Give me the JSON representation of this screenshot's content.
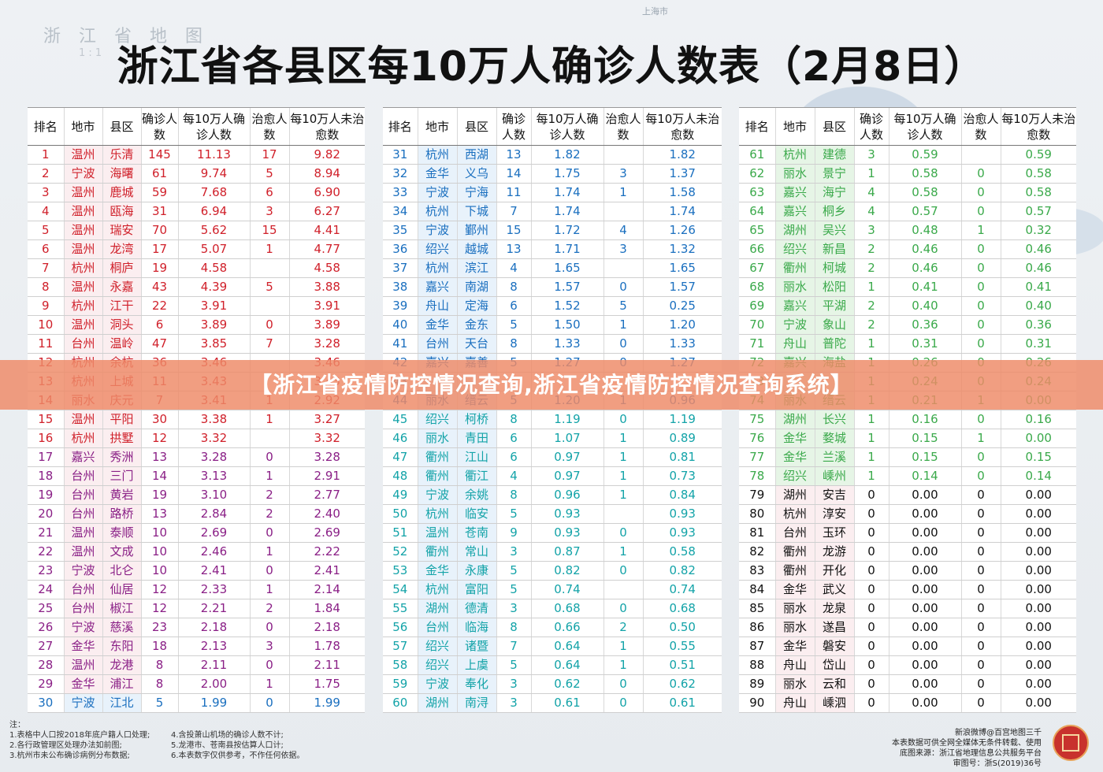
{
  "map": {
    "title": "浙 江 省 地 图",
    "scale": "1 : 1",
    "shanghai": "上海市"
  },
  "title": "浙江省各县区每10万人确诊人数表（2月8日）",
  "headers": [
    "排名",
    "地市",
    "县区",
    "确诊人数",
    "每10万人确诊人数",
    "治愈人数",
    "每10万人未治愈数"
  ],
  "banner": "【浙江省疫情防控情况查询,浙江省疫情防控情况查询系统】",
  "table1": [
    {
      "rank": "1",
      "city": "温州",
      "county": "乐清",
      "cases": "145",
      "per": "11.13",
      "cured": "17",
      "uncured": "9.82",
      "color": "red"
    },
    {
      "rank": "2",
      "city": "宁波",
      "county": "海曙",
      "cases": "61",
      "per": "9.74",
      "cured": "5",
      "uncured": "8.94",
      "color": "red"
    },
    {
      "rank": "3",
      "city": "温州",
      "county": "鹿城",
      "cases": "59",
      "per": "7.68",
      "cured": "6",
      "uncured": "6.90",
      "color": "red"
    },
    {
      "rank": "4",
      "city": "温州",
      "county": "瓯海",
      "cases": "31",
      "per": "6.94",
      "cured": "3",
      "uncured": "6.27",
      "color": "red"
    },
    {
      "rank": "5",
      "city": "温州",
      "county": "瑞安",
      "cases": "70",
      "per": "5.62",
      "cured": "15",
      "uncured": "4.41",
      "color": "red"
    },
    {
      "rank": "6",
      "city": "温州",
      "county": "龙湾",
      "cases": "17",
      "per": "5.07",
      "cured": "1",
      "uncured": "4.77",
      "color": "red"
    },
    {
      "rank": "7",
      "city": "杭州",
      "county": "桐庐",
      "cases": "19",
      "per": "4.58",
      "cured": "",
      "uncured": "4.58",
      "color": "red"
    },
    {
      "rank": "8",
      "city": "温州",
      "county": "永嘉",
      "cases": "43",
      "per": "4.39",
      "cured": "5",
      "uncured": "3.88",
      "color": "red"
    },
    {
      "rank": "9",
      "city": "杭州",
      "county": "江干",
      "cases": "22",
      "per": "3.91",
      "cured": "",
      "uncured": "3.91",
      "color": "red"
    },
    {
      "rank": "10",
      "city": "温州",
      "county": "洞头",
      "cases": "6",
      "per": "3.89",
      "cured": "0",
      "uncured": "3.89",
      "color": "red"
    },
    {
      "rank": "11",
      "city": "台州",
      "county": "温岭",
      "cases": "47",
      "per": "3.85",
      "cured": "7",
      "uncured": "3.28",
      "color": "red"
    },
    {
      "rank": "12",
      "city": "杭州",
      "county": "余杭",
      "cases": "36",
      "per": "3.46",
      "cured": "",
      "uncured": "3.46",
      "color": "red"
    },
    {
      "rank": "13",
      "city": "杭州",
      "county": "上城",
      "cases": "11",
      "per": "3.43",
      "cured": "",
      "uncured": "3.43",
      "color": "red"
    },
    {
      "rank": "14",
      "city": "丽水",
      "county": "庆元",
      "cases": "7",
      "per": "3.41",
      "cured": "1",
      "uncured": "2.92",
      "color": "red"
    },
    {
      "rank": "15",
      "city": "温州",
      "county": "平阳",
      "cases": "30",
      "per": "3.38",
      "cured": "1",
      "uncured": "3.27",
      "color": "red"
    },
    {
      "rank": "16",
      "city": "杭州",
      "county": "拱墅",
      "cases": "12",
      "per": "3.32",
      "cured": "",
      "uncured": "3.32",
      "color": "red"
    },
    {
      "rank": "17",
      "city": "嘉兴",
      "county": "秀洲",
      "cases": "13",
      "per": "3.28",
      "cured": "0",
      "uncured": "3.28",
      "color": "purple"
    },
    {
      "rank": "18",
      "city": "台州",
      "county": "三门",
      "cases": "14",
      "per": "3.13",
      "cured": "1",
      "uncured": "2.91",
      "color": "purple"
    },
    {
      "rank": "19",
      "city": "台州",
      "county": "黄岩",
      "cases": "19",
      "per": "3.10",
      "cured": "2",
      "uncured": "2.77",
      "color": "purple"
    },
    {
      "rank": "20",
      "city": "台州",
      "county": "路桥",
      "cases": "13",
      "per": "2.84",
      "cured": "2",
      "uncured": "2.40",
      "color": "purple"
    },
    {
      "rank": "21",
      "city": "温州",
      "county": "泰顺",
      "cases": "10",
      "per": "2.69",
      "cured": "0",
      "uncured": "2.69",
      "color": "purple"
    },
    {
      "rank": "22",
      "city": "温州",
      "county": "文成",
      "cases": "10",
      "per": "2.46",
      "cured": "1",
      "uncured": "2.22",
      "color": "purple"
    },
    {
      "rank": "23",
      "city": "宁波",
      "county": "北仑",
      "cases": "10",
      "per": "2.41",
      "cured": "0",
      "uncured": "2.41",
      "color": "purple"
    },
    {
      "rank": "24",
      "city": "台州",
      "county": "仙居",
      "cases": "12",
      "per": "2.33",
      "cured": "1",
      "uncured": "2.14",
      "color": "purple"
    },
    {
      "rank": "25",
      "city": "台州",
      "county": "椒江",
      "cases": "12",
      "per": "2.21",
      "cured": "2",
      "uncured": "1.84",
      "color": "purple"
    },
    {
      "rank": "26",
      "city": "宁波",
      "county": "慈溪",
      "cases": "23",
      "per": "2.18",
      "cured": "0",
      "uncured": "2.18",
      "color": "purple"
    },
    {
      "rank": "27",
      "city": "金华",
      "county": "东阳",
      "cases": "18",
      "per": "2.13",
      "cured": "3",
      "uncured": "1.78",
      "color": "purple"
    },
    {
      "rank": "28",
      "city": "温州",
      "county": "龙港",
      "cases": "8",
      "per": "2.11",
      "cured": "0",
      "uncured": "2.11",
      "color": "purple"
    },
    {
      "rank": "29",
      "city": "金华",
      "county": "浦江",
      "cases": "8",
      "per": "2.00",
      "cured": "1",
      "uncured": "1.75",
      "color": "purple"
    },
    {
      "rank": "30",
      "city": "宁波",
      "county": "江北",
      "cases": "5",
      "per": "1.99",
      "cured": "0",
      "uncured": "1.99",
      "color": "blue"
    }
  ],
  "table2": [
    {
      "rank": "31",
      "city": "杭州",
      "county": "西湖",
      "cases": "13",
      "per": "1.82",
      "cured": "",
      "uncured": "1.82",
      "color": "blue"
    },
    {
      "rank": "32",
      "city": "金华",
      "county": "义乌",
      "cases": "14",
      "per": "1.75",
      "cured": "3",
      "uncured": "1.37",
      "color": "blue"
    },
    {
      "rank": "33",
      "city": "宁波",
      "county": "宁海",
      "cases": "11",
      "per": "1.74",
      "cured": "1",
      "uncured": "1.58",
      "color": "blue"
    },
    {
      "rank": "34",
      "city": "杭州",
      "county": "下城",
      "cases": "7",
      "per": "1.74",
      "cured": "",
      "uncured": "1.74",
      "color": "blue"
    },
    {
      "rank": "35",
      "city": "宁波",
      "county": "鄞州",
      "cases": "15",
      "per": "1.72",
      "cured": "4",
      "uncured": "1.26",
      "color": "blue"
    },
    {
      "rank": "36",
      "city": "绍兴",
      "county": "越城",
      "cases": "13",
      "per": "1.71",
      "cured": "3",
      "uncured": "1.32",
      "color": "blue"
    },
    {
      "rank": "37",
      "city": "杭州",
      "county": "滨江",
      "cases": "4",
      "per": "1.65",
      "cured": "",
      "uncured": "1.65",
      "color": "blue"
    },
    {
      "rank": "38",
      "city": "嘉兴",
      "county": "南湖",
      "cases": "8",
      "per": "1.57",
      "cured": "0",
      "uncured": "1.57",
      "color": "blue"
    },
    {
      "rank": "39",
      "city": "舟山",
      "county": "定海",
      "cases": "6",
      "per": "1.52",
      "cured": "5",
      "uncured": "0.25",
      "color": "blue"
    },
    {
      "rank": "40",
      "city": "金华",
      "county": "金东",
      "cases": "5",
      "per": "1.50",
      "cured": "1",
      "uncured": "1.20",
      "color": "blue"
    },
    {
      "rank": "41",
      "city": "台州",
      "county": "天台",
      "cases": "8",
      "per": "1.33",
      "cured": "0",
      "uncured": "1.33",
      "color": "blue"
    },
    {
      "rank": "42",
      "city": "嘉兴",
      "county": "嘉善",
      "cases": "5",
      "per": "1.27",
      "cured": "0",
      "uncured": "1.27",
      "color": "blue"
    },
    {
      "rank": "43",
      "city": "",
      "county": "",
      "cases": "",
      "per": "",
      "cured": "",
      "uncured": "",
      "color": "blue"
    },
    {
      "rank": "44",
      "city": "丽水",
      "county": "缙云",
      "cases": "5",
      "per": "1.20",
      "cured": "1",
      "uncured": "0.96",
      "color": "blue"
    },
    {
      "rank": "45",
      "city": "绍兴",
      "county": "柯桥",
      "cases": "8",
      "per": "1.19",
      "cured": "0",
      "uncured": "1.19",
      "color": "teal"
    },
    {
      "rank": "46",
      "city": "丽水",
      "county": "青田",
      "cases": "6",
      "per": "1.07",
      "cured": "1",
      "uncured": "0.89",
      "color": "teal"
    },
    {
      "rank": "47",
      "city": "衢州",
      "county": "江山",
      "cases": "6",
      "per": "0.97",
      "cured": "1",
      "uncured": "0.81",
      "color": "teal"
    },
    {
      "rank": "48",
      "city": "衢州",
      "county": "衢江",
      "cases": "4",
      "per": "0.97",
      "cured": "1",
      "uncured": "0.73",
      "color": "teal"
    },
    {
      "rank": "49",
      "city": "宁波",
      "county": "余姚",
      "cases": "8",
      "per": "0.96",
      "cured": "1",
      "uncured": "0.84",
      "color": "teal"
    },
    {
      "rank": "50",
      "city": "杭州",
      "county": "临安",
      "cases": "5",
      "per": "0.93",
      "cured": "",
      "uncured": "0.93",
      "color": "teal"
    },
    {
      "rank": "51",
      "city": "温州",
      "county": "苍南",
      "cases": "9",
      "per": "0.93",
      "cured": "0",
      "uncured": "0.93",
      "color": "teal"
    },
    {
      "rank": "52",
      "city": "衢州",
      "county": "常山",
      "cases": "3",
      "per": "0.87",
      "cured": "1",
      "uncured": "0.58",
      "color": "teal"
    },
    {
      "rank": "53",
      "city": "金华",
      "county": "永康",
      "cases": "5",
      "per": "0.82",
      "cured": "0",
      "uncured": "0.82",
      "color": "teal"
    },
    {
      "rank": "54",
      "city": "杭州",
      "county": "富阳",
      "cases": "5",
      "per": "0.74",
      "cured": "",
      "uncured": "0.74",
      "color": "teal"
    },
    {
      "rank": "55",
      "city": "湖州",
      "county": "德清",
      "cases": "3",
      "per": "0.68",
      "cured": "0",
      "uncured": "0.68",
      "color": "teal"
    },
    {
      "rank": "56",
      "city": "台州",
      "county": "临海",
      "cases": "8",
      "per": "0.66",
      "cured": "2",
      "uncured": "0.50",
      "color": "teal"
    },
    {
      "rank": "57",
      "city": "绍兴",
      "county": "诸暨",
      "cases": "7",
      "per": "0.64",
      "cured": "1",
      "uncured": "0.55",
      "color": "teal"
    },
    {
      "rank": "58",
      "city": "绍兴",
      "county": "上虞",
      "cases": "5",
      "per": "0.64",
      "cured": "1",
      "uncured": "0.51",
      "color": "teal"
    },
    {
      "rank": "59",
      "city": "宁波",
      "county": "奉化",
      "cases": "3",
      "per": "0.62",
      "cured": "0",
      "uncured": "0.62",
      "color": "teal"
    },
    {
      "rank": "60",
      "city": "湖州",
      "county": "南浔",
      "cases": "3",
      "per": "0.61",
      "cured": "0",
      "uncured": "0.61",
      "color": "teal"
    }
  ],
  "table3": [
    {
      "rank": "61",
      "city": "杭州",
      "county": "建德",
      "cases": "3",
      "per": "0.59",
      "cured": "",
      "uncured": "0.59",
      "color": "green"
    },
    {
      "rank": "62",
      "city": "丽水",
      "county": "景宁",
      "cases": "1",
      "per": "0.58",
      "cured": "0",
      "uncured": "0.58",
      "color": "green"
    },
    {
      "rank": "63",
      "city": "嘉兴",
      "county": "海宁",
      "cases": "4",
      "per": "0.58",
      "cured": "0",
      "uncured": "0.58",
      "color": "green"
    },
    {
      "rank": "64",
      "city": "嘉兴",
      "county": "桐乡",
      "cases": "4",
      "per": "0.57",
      "cured": "0",
      "uncured": "0.57",
      "color": "green"
    },
    {
      "rank": "65",
      "city": "湖州",
      "county": "吴兴",
      "cases": "3",
      "per": "0.48",
      "cured": "1",
      "uncured": "0.32",
      "color": "green"
    },
    {
      "rank": "66",
      "city": "绍兴",
      "county": "新昌",
      "cases": "2",
      "per": "0.46",
      "cured": "0",
      "uncured": "0.46",
      "color": "green"
    },
    {
      "rank": "67",
      "city": "衢州",
      "county": "柯城",
      "cases": "2",
      "per": "0.46",
      "cured": "0",
      "uncured": "0.46",
      "color": "green"
    },
    {
      "rank": "68",
      "city": "丽水",
      "county": "松阳",
      "cases": "1",
      "per": "0.41",
      "cured": "0",
      "uncured": "0.41",
      "color": "green"
    },
    {
      "rank": "69",
      "city": "嘉兴",
      "county": "平湖",
      "cases": "2",
      "per": "0.40",
      "cured": "0",
      "uncured": "0.40",
      "color": "green"
    },
    {
      "rank": "70",
      "city": "宁波",
      "county": "象山",
      "cases": "2",
      "per": "0.36",
      "cured": "0",
      "uncured": "0.36",
      "color": "green"
    },
    {
      "rank": "71",
      "city": "舟山",
      "county": "普陀",
      "cases": "1",
      "per": "0.31",
      "cured": "0",
      "uncured": "0.31",
      "color": "green"
    },
    {
      "rank": "72",
      "city": "嘉兴",
      "county": "海盐",
      "cases": "1",
      "per": "0.26",
      "cured": "0",
      "uncured": "0.26",
      "color": "green"
    },
    {
      "rank": "73",
      "city": "",
      "county": "",
      "cases": "1",
      "per": "0.24",
      "cured": "0",
      "uncured": "0.24",
      "color": "green"
    },
    {
      "rank": "74",
      "city": "丽水",
      "county": "缙云",
      "cases": "1",
      "per": "0.21",
      "cured": "1",
      "uncured": "0.00",
      "color": "green"
    },
    {
      "rank": "75",
      "city": "湖州",
      "county": "长兴",
      "cases": "1",
      "per": "0.16",
      "cured": "0",
      "uncured": "0.16",
      "color": "green"
    },
    {
      "rank": "76",
      "city": "金华",
      "county": "婺城",
      "cases": "1",
      "per": "0.15",
      "cured": "1",
      "uncured": "0.00",
      "color": "green"
    },
    {
      "rank": "77",
      "city": "金华",
      "county": "兰溪",
      "cases": "1",
      "per": "0.15",
      "cured": "0",
      "uncured": "0.15",
      "color": "green"
    },
    {
      "rank": "78",
      "city": "绍兴",
      "county": "嵊州",
      "cases": "1",
      "per": "0.14",
      "cured": "0",
      "uncured": "0.14",
      "color": "green"
    },
    {
      "rank": "79",
      "city": "湖州",
      "county": "安吉",
      "cases": "0",
      "per": "0.00",
      "cured": "0",
      "uncured": "0.00",
      "color": "black"
    },
    {
      "rank": "80",
      "city": "杭州",
      "county": "淳安",
      "cases": "0",
      "per": "0.00",
      "cured": "0",
      "uncured": "0.00",
      "color": "black"
    },
    {
      "rank": "81",
      "city": "台州",
      "county": "玉环",
      "cases": "0",
      "per": "0.00",
      "cured": "0",
      "uncured": "0.00",
      "color": "black"
    },
    {
      "rank": "82",
      "city": "衢州",
      "county": "龙游",
      "cases": "0",
      "per": "0.00",
      "cured": "0",
      "uncured": "0.00",
      "color": "black"
    },
    {
      "rank": "83",
      "city": "衢州",
      "county": "开化",
      "cases": "0",
      "per": "0.00",
      "cured": "0",
      "uncured": "0.00",
      "color": "black"
    },
    {
      "rank": "84",
      "city": "金华",
      "county": "武义",
      "cases": "0",
      "per": "0.00",
      "cured": "0",
      "uncured": "0.00",
      "color": "black"
    },
    {
      "rank": "85",
      "city": "丽水",
      "county": "龙泉",
      "cases": "0",
      "per": "0.00",
      "cured": "0",
      "uncured": "0.00",
      "color": "black"
    },
    {
      "rank": "86",
      "city": "丽水",
      "county": "遂昌",
      "cases": "0",
      "per": "0.00",
      "cured": "0",
      "uncured": "0.00",
      "color": "black"
    },
    {
      "rank": "87",
      "city": "金华",
      "county": "磐安",
      "cases": "0",
      "per": "0.00",
      "cured": "0",
      "uncured": "0.00",
      "color": "black"
    },
    {
      "rank": "88",
      "city": "舟山",
      "county": "岱山",
      "cases": "0",
      "per": "0.00",
      "cured": "0",
      "uncured": "0.00",
      "color": "black"
    },
    {
      "rank": "89",
      "city": "丽水",
      "county": "云和",
      "cases": "0",
      "per": "0.00",
      "cured": "0",
      "uncured": "0.00",
      "color": "black"
    },
    {
      "rank": "90",
      "city": "舟山",
      "county": "嵊泗",
      "cases": "0",
      "per": "0.00",
      "cured": "0",
      "uncured": "0.00",
      "color": "black"
    }
  ],
  "notes": {
    "heading": "注：",
    "col1": [
      "1.表格中人口按2018年底户籍人口处理;",
      "2.各行政管理区处理办法如前图;",
      "3.杭州市未公布确诊病例分布数据;"
    ],
    "col2": [
      "4.含投萧山机场的确诊人数不计;",
      "5.龙港市、苍南县按估算人口计;",
      "6.本表数字仅供参考，不作任何依据。"
    ]
  },
  "credit": [
    "新浪微博@百宫地图三千",
    "本表数据可供全网全媒体无条件转载、使用",
    "底图来源：浙江省地理信息公共服务平台",
    "审图号：浙S(2019)36号"
  ],
  "colors": {
    "red": "#d0202a",
    "purple": "#8a1f86",
    "blue": "#1a6fbf",
    "teal": "#13a3a8",
    "green": "#3aa94a",
    "black": "#111111",
    "banner": "#ee8a68"
  }
}
